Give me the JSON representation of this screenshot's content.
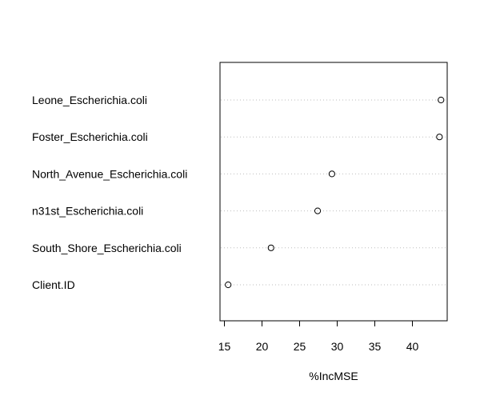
{
  "chart_data": {
    "type": "scatter",
    "title": "",
    "xlabel": "%IncMSE",
    "ylabel": "",
    "categories": [
      "Leone_Escherichia.coli",
      "Foster_Escherichia.coli",
      "North_Avenue_Escherichia.coli",
      "n31st_Escherichia.coli",
      "South_Shore_Escherichia.coli",
      "Client.ID"
    ],
    "values": [
      43.8,
      43.6,
      29.3,
      27.4,
      21.2,
      15.5
    ],
    "x_ticks": [
      "15",
      "20",
      "25",
      "30",
      "35",
      "40"
    ],
    "xlim": [
      15,
      44
    ],
    "grid": "dotted horizontal lines per category",
    "colors": {
      "point": "#000000",
      "grid": "#bebebe",
      "axis": "#000000"
    }
  }
}
